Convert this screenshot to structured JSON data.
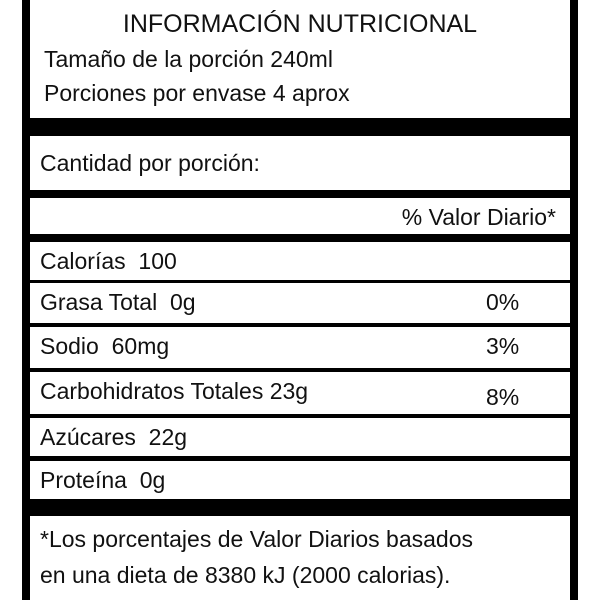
{
  "header": {
    "title": "INFORMACIÓN NUTRICIONAL",
    "lines": [
      "Tamaño de la porción 240ml",
      "Porciones por envase 4 aprox"
    ]
  },
  "amount_label": "Cantidad por porción:",
  "dv_header": "% Valor Diario*",
  "rows": [
    {
      "label": "Calorías  100"
    },
    {
      "label": "Grasa Total  0g",
      "dv": "0%"
    },
    {
      "label": "Sodio  60mg",
      "dv": "3%"
    },
    {
      "label": "Carbohidratos Totales 23g",
      "dv": "8%"
    },
    {
      "label": "Azúcares  22g"
    },
    {
      "label": "Proteína  0g"
    }
  ],
  "footnote": [
    "*Los porcentajes de Valor Diarios basados",
    "en una dieta de 8380 kJ (2000 calorias)."
  ]
}
